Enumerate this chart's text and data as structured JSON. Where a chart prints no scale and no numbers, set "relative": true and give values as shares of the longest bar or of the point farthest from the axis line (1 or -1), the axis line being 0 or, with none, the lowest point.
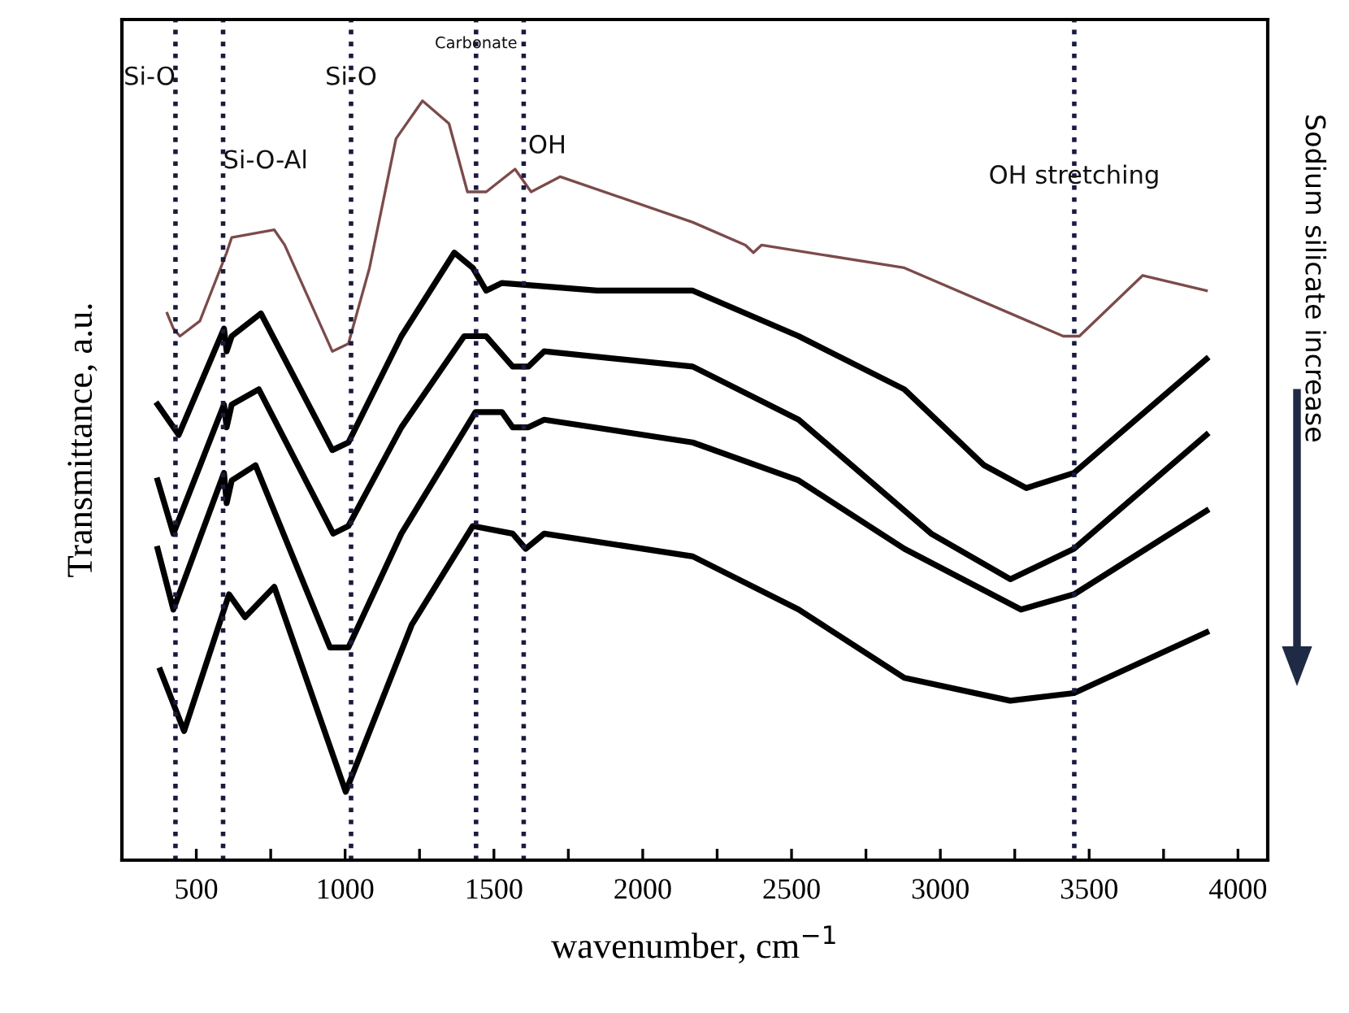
{
  "chart_data": {
    "type": "line",
    "relative": true,
    "xlabel": "wavenumber, cm$^{−1}$",
    "ylabel": "Transmittance, a.u.",
    "xlim": [
      250,
      4100
    ],
    "xticks": [
      500,
      {
        "value": 750,
        "label": null
      },
      1000,
      {
        "value": 1250,
        "label": null
      },
      1500,
      {
        "value": 1750,
        "label": null
      },
      2000,
      {
        "value": 2250,
        "label": null
      },
      2500,
      {
        "value": 2750,
        "label": null
      },
      3000,
      {
        "value": 3250,
        "label": null
      },
      3500,
      {
        "value": 3750,
        "label": null
      },
      4000
    ],
    "marker": "none",
    "line_style": "solid",
    "grid": false,
    "legend": false,
    "annotations": [
      "Sodium silicate increase"
    ],
    "ref_lines": [
      {
        "axis": "x",
        "value": 430,
        "label": "Si-O",
        "color": "#1a1a40",
        "line_style": "dotted"
      },
      {
        "axis": "x",
        "value": 590,
        "label": "Si-O-Al",
        "color": "#1a1a40",
        "line_style": "dotted"
      },
      {
        "axis": "x",
        "value": 1020,
        "label": "Si-O",
        "color": "#1a1a40",
        "line_style": "dotted"
      },
      {
        "axis": "x",
        "value": 1440,
        "label": "Carbonate",
        "color": "#1a1a40",
        "line_style": "dotted"
      },
      {
        "axis": "x",
        "value": 1600,
        "label": "OH",
        "color": "#1a1a40",
        "line_style": "dotted"
      },
      {
        "axis": "x",
        "value": 3450,
        "label": "OH stretching",
        "color": "#1a1a40",
        "line_style": "dotted"
      }
    ],
    "series": [
      {
        "color": "#7b4b4b",
        "x": [
          402,
          423,
          445,
          512,
          602,
          619,
          762,
          797,
          957,
          1011,
          1082,
          1171,
          1260,
          1349,
          1411,
          1474,
          1571,
          1625,
          1723,
          2168,
          2345,
          2372,
          2399,
          2879,
          3413,
          3467,
          3680,
          3894
        ],
        "values": [
          0.72,
          0.7,
          0.69,
          0.71,
          0.8,
          0.82,
          0.83,
          0.81,
          0.67,
          0.68,
          0.78,
          0.95,
          1.0,
          0.97,
          0.88,
          0.88,
          0.91,
          0.88,
          0.9,
          0.84,
          0.81,
          0.8,
          0.81,
          0.78,
          0.69,
          0.69,
          0.77,
          0.75
        ]
      },
      {
        "color": "#000000",
        "x": [
          370,
          441,
          593,
          602,
          619,
          717,
          957,
          1011,
          1189,
          1367,
          1429,
          1474,
          1527,
          1847,
          2168,
          2524,
          2879,
          3147,
          3289,
          3449,
          3894
        ],
        "values": [
          0.6,
          0.56,
          0.7,
          0.67,
          0.69,
          0.72,
          0.54,
          0.55,
          0.69,
          0.8,
          0.78,
          0.75,
          0.76,
          0.75,
          0.75,
          0.69,
          0.62,
          0.52,
          0.49,
          0.51,
          0.66
        ]
      },
      {
        "color": "#000000",
        "x": [
          370,
          423,
          593,
          602,
          619,
          710,
          960,
          1011,
          1189,
          1400,
          1474,
          1563,
          1616,
          1669,
          2168,
          2524,
          2969,
          3235,
          3449,
          3894
        ],
        "values": [
          0.5,
          0.43,
          0.6,
          0.57,
          0.6,
          0.62,
          0.43,
          0.44,
          0.57,
          0.69,
          0.69,
          0.65,
          0.65,
          0.67,
          0.65,
          0.58,
          0.43,
          0.37,
          0.41,
          0.56
        ]
      },
      {
        "color": "#000000",
        "x": [
          370,
          423,
          593,
          602,
          619,
          699,
          949,
          1011,
          1189,
          1438,
          1527,
          1563,
          1616,
          1669,
          2168,
          2524,
          2879,
          3271,
          3449,
          3894
        ],
        "values": [
          0.41,
          0.33,
          0.51,
          0.47,
          0.5,
          0.52,
          0.28,
          0.28,
          0.43,
          0.59,
          0.59,
          0.57,
          0.57,
          0.58,
          0.55,
          0.5,
          0.41,
          0.33,
          0.35,
          0.46
        ]
      },
      {
        "color": "#000000",
        "x": [
          379,
          459,
          610,
          664,
          762,
          1002,
          1224,
          1429,
          1563,
          1607,
          1669,
          2168,
          2524,
          2879,
          3235,
          3449,
          3894
        ],
        "values": [
          0.25,
          0.17,
          0.35,
          0.32,
          0.36,
          0.09,
          0.31,
          0.44,
          0.43,
          0.41,
          0.43,
          0.4,
          0.33,
          0.24,
          0.21,
          0.22,
          0.3
        ]
      }
    ]
  }
}
